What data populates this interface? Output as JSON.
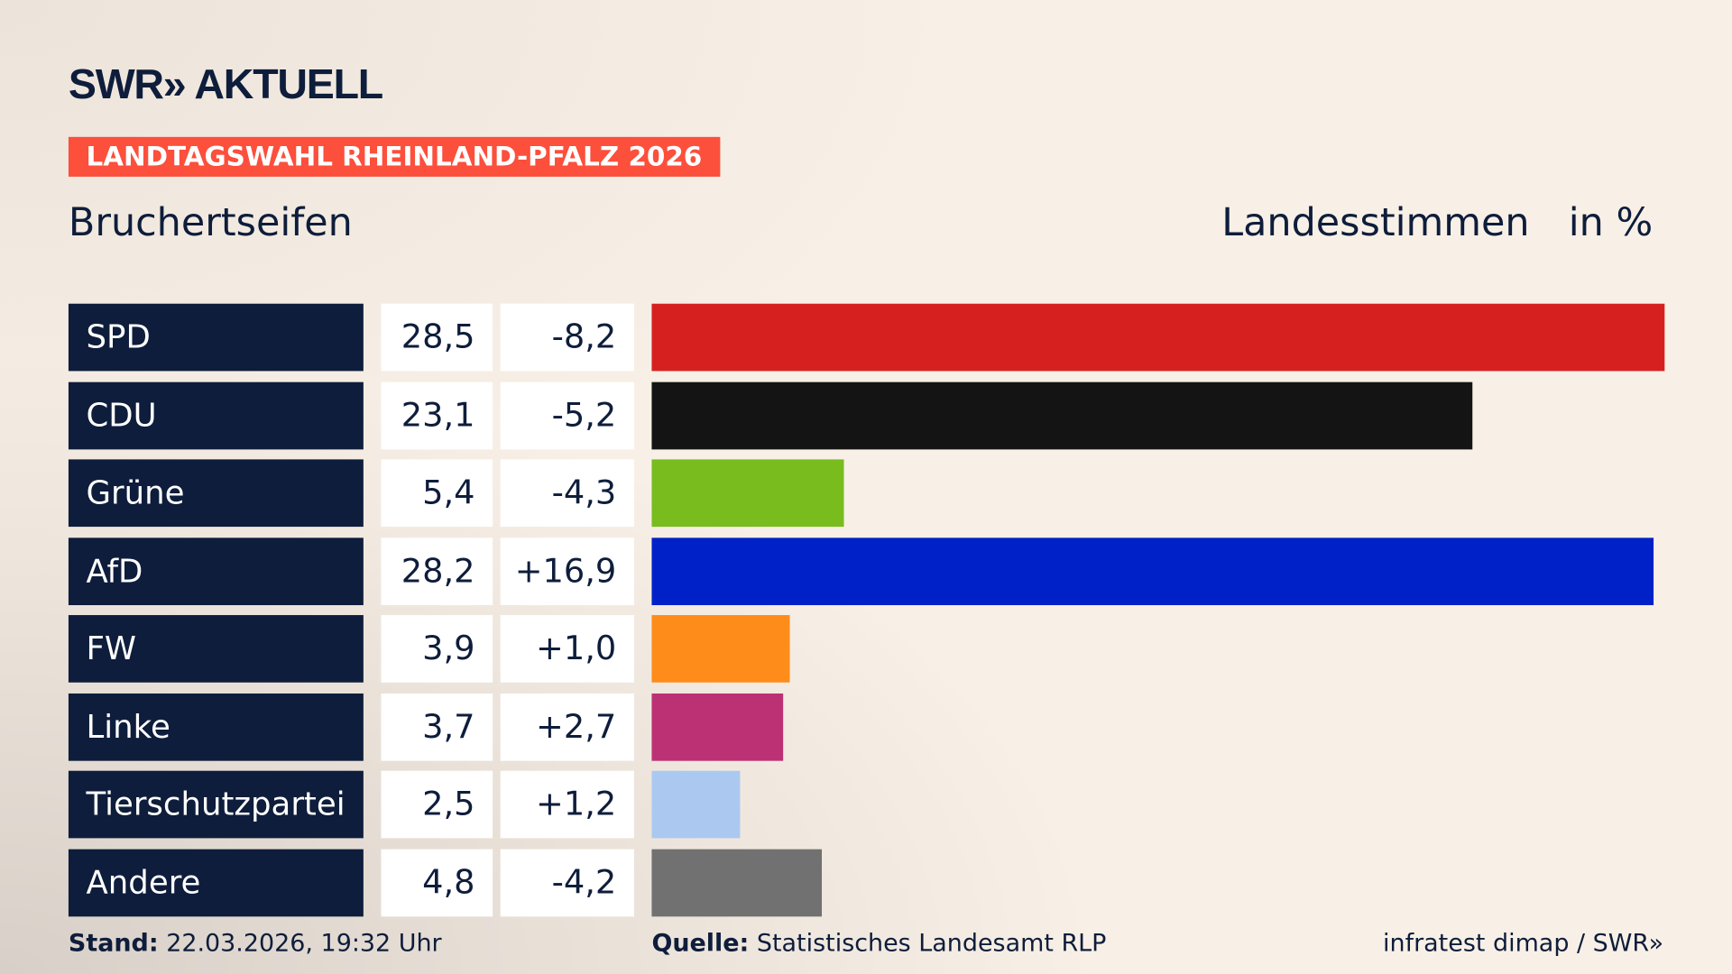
{
  "brand": "SWR» AKTUELL",
  "tag": "LANDTAGSWAHL RHEINLAND-PFALZ 2026",
  "location": "Bruchertseifen",
  "header_type": "Landesstimmen",
  "header_unit": "in %",
  "chart_data": {
    "type": "bar",
    "orientation": "horizontal",
    "categories": [
      "SPD",
      "CDU",
      "Grüne",
      "AfD",
      "FW",
      "Linke",
      "Tierschutzpartei",
      "Andere"
    ],
    "values": [
      28.5,
      23.1,
      5.4,
      28.2,
      3.9,
      3.7,
      2.5,
      4.8
    ],
    "value_labels": [
      "28,5",
      "23,1",
      "5,4",
      "28,2",
      "3,9",
      "3,7",
      "2,5",
      "4,8"
    ],
    "diff_labels": [
      "-8,2",
      "-5,2",
      "-4,3",
      "+16,9",
      "+1,0",
      "+2,7",
      "+1,2",
      "-4,2"
    ],
    "colors": [
      "#d62020",
      "#141414",
      "#78bc1e",
      "#0021c8",
      "#fe8c1a",
      "#bc3174",
      "#abc9f0",
      "#717171"
    ]
  },
  "footer": {
    "stand_label": "Stand:",
    "stand_value": "22.03.2026, 19:32 Uhr",
    "source_label": "Quelle:",
    "source_value": "Statistisches Landesamt RLP",
    "credit": "infratest dimap / SWR»"
  }
}
